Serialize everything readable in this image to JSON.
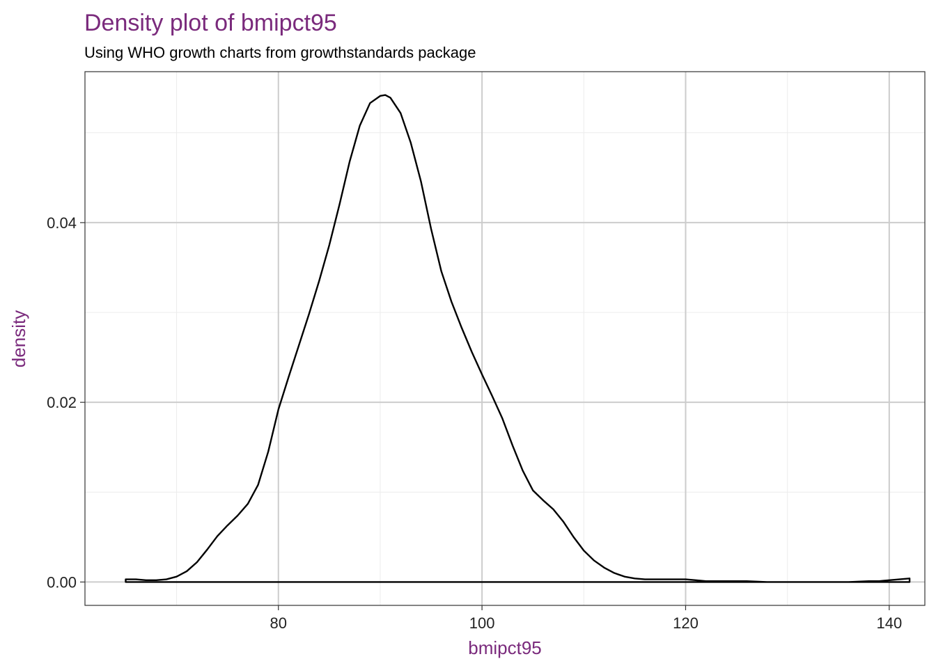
{
  "colors": {
    "accent": "#7a2a7c",
    "curve": "#000000",
    "grid_major": "#cccccc",
    "grid_minor": "#ececec",
    "panel_border": "#333333"
  },
  "chart_data": {
    "type": "area",
    "title": "Density plot of bmipct95",
    "subtitle": "Using WHO growth charts from growthstandards package",
    "xlabel": "bmipct95",
    "ylabel": "density",
    "xlim": [
      61,
      143.5
    ],
    "ylim": [
      -0.0026,
      0.0568
    ],
    "x_ticks": [
      80,
      100,
      120,
      140
    ],
    "x_tick_labels": [
      "80",
      "100",
      "120",
      "140"
    ],
    "y_ticks": [
      0,
      0.02,
      0.04
    ],
    "y_tick_labels": [
      "0.00",
      "0.02",
      "0.04"
    ],
    "grid": true,
    "legend": "none",
    "series": [
      {
        "x": [
          65,
          66,
          67,
          68,
          69,
          70,
          71,
          72,
          73,
          74,
          75,
          76,
          77,
          78,
          79,
          80,
          81,
          82,
          83,
          84,
          85,
          86,
          87,
          88,
          89,
          90,
          90.5,
          91,
          92,
          93,
          94,
          95,
          96,
          97,
          98,
          99,
          100,
          101,
          102,
          103,
          104,
          105,
          106,
          107,
          108,
          109,
          110,
          111,
          112,
          113,
          114,
          115,
          116,
          117,
          118,
          119,
          120,
          121,
          122,
          124,
          126,
          128,
          130,
          132,
          134,
          136,
          138,
          139,
          140,
          141,
          142
        ],
        "y": [
          0.0003,
          0.0003,
          0.0002,
          0.0002,
          0.0003,
          0.0006,
          0.0012,
          0.0022,
          0.0036,
          0.0051,
          0.0063,
          0.0074,
          0.0087,
          0.0108,
          0.0145,
          0.0192,
          0.0228,
          0.0263,
          0.0298,
          0.0335,
          0.0375,
          0.042,
          0.0468,
          0.0508,
          0.0533,
          0.0541,
          0.0542,
          0.0539,
          0.0522,
          0.0489,
          0.0446,
          0.0393,
          0.0346,
          0.0312,
          0.0283,
          0.0256,
          0.0231,
          0.0207,
          0.0182,
          0.0152,
          0.0124,
          0.0102,
          0.0091,
          0.0081,
          0.0067,
          0.005,
          0.0035,
          0.0024,
          0.0016,
          0.001,
          0.0006,
          0.0004,
          0.0003,
          0.0003,
          0.0003,
          0.0003,
          0.0003,
          0.0002,
          0.0001,
          0.0001,
          0.0001,
          0.0,
          0.0,
          0.0,
          0.0,
          0.0,
          0.0001,
          0.0001,
          0.0002,
          0.0003,
          0.0004
        ]
      }
    ]
  }
}
